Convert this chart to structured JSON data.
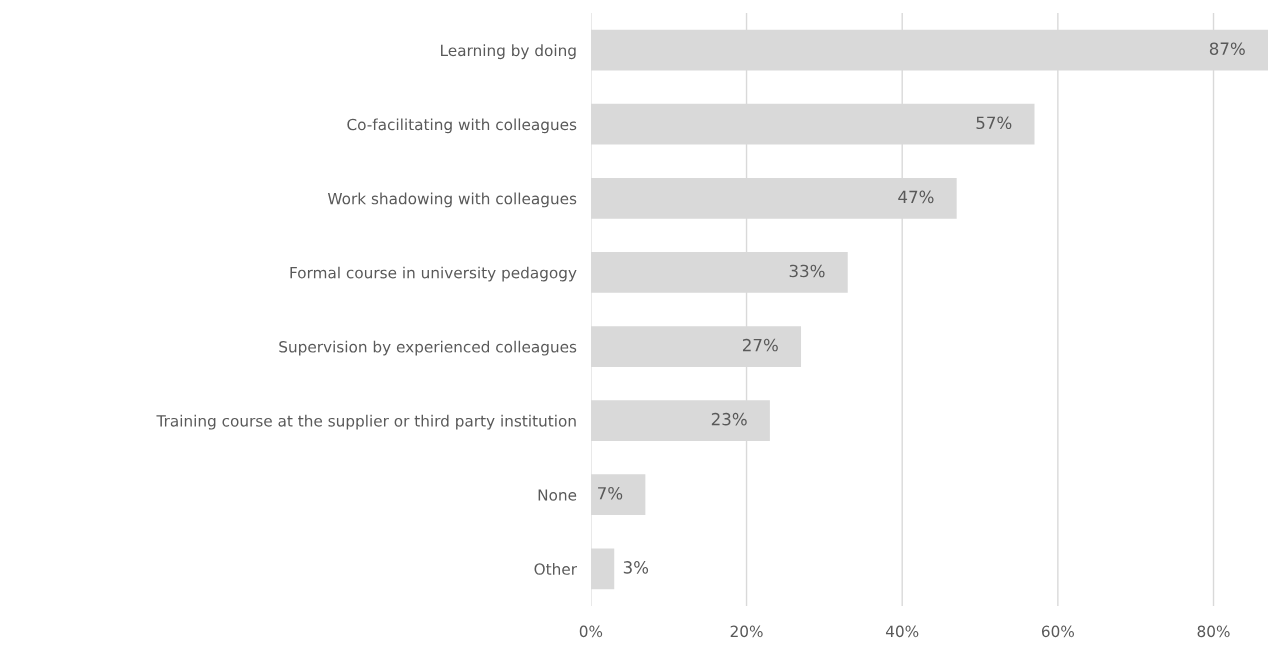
{
  "chart_data": {
    "type": "bar",
    "orientation": "horizontal",
    "categories": [
      "Learning by doing",
      "Co-facilitating with colleagues",
      "Work shadowing with colleagues",
      "Formal course in university pedagogy",
      "Supervision by experienced colleagues",
      "Training course at the supplier or third party institution",
      "None",
      "Other"
    ],
    "values": [
      87,
      57,
      47,
      33,
      27,
      23,
      7,
      3
    ],
    "value_labels": [
      "87%",
      "57%",
      "47%",
      "33%",
      "27%",
      "23%",
      "7%",
      "3%"
    ],
    "color": "#d9d9d9",
    "xlim": [
      0,
      87
    ],
    "xticks": [
      {
        "value": 0,
        "label": "0%"
      },
      {
        "value": 20,
        "label": "20%"
      },
      {
        "value": 40,
        "label": "40%"
      },
      {
        "value": 60,
        "label": "60%"
      },
      {
        "value": 80,
        "label": "80%"
      }
    ],
    "grid": "x",
    "legend": false
  }
}
